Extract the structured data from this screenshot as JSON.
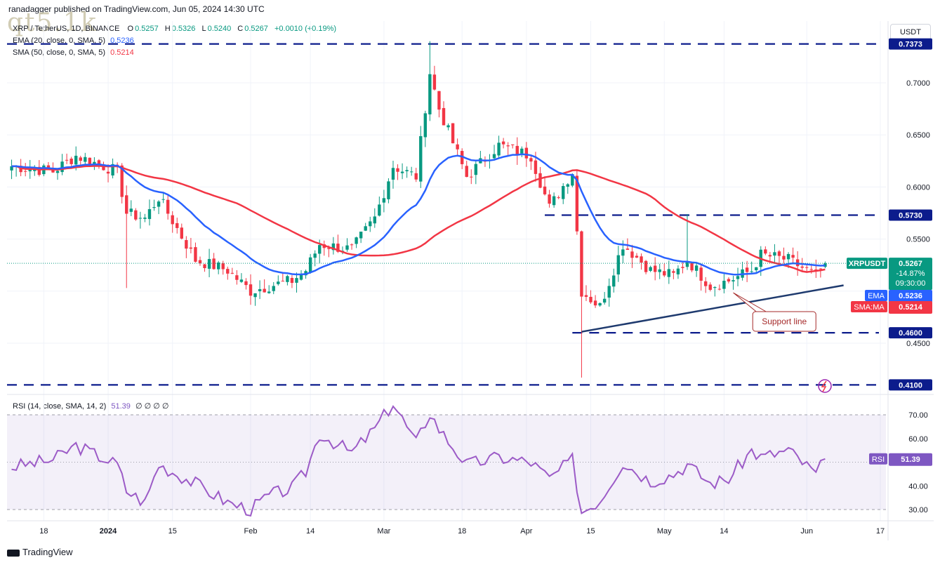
{
  "header": {
    "publisher": "ranadagger published on TradingView.com, Jun 05, 2024 14:30 UTC",
    "watermark": "qt5.1k",
    "symbol": "XRP / TetherUS, 1D, BINANCE",
    "o_label": "O",
    "o": "0.5257",
    "h_label": "H",
    "h": "0.5326",
    "l_label": "L",
    "l": "0.5240",
    "c_label": "C",
    "c": "0.5267",
    "change": "+0.0010 (+0.19%)",
    "ema_label": "EMA (20, close, 0, SMA, 5)",
    "ema_value": "0.5236",
    "sma_label": "SMA (50, close, 0, SMA, 5)",
    "sma_value": "0.5214",
    "rsi_label": "RSI (14, close, SMA, 14, 2)",
    "rsi_value": "51.39",
    "rsi_extra": "∅ ∅ ∅ ∅",
    "currency_button": "USDT"
  },
  "footer": {
    "brand": "TradingView"
  },
  "colors": {
    "up": "#089981",
    "down": "#f23645",
    "ema": "#2962ff",
    "sma": "#f23645",
    "rsi": "#9c5bc7",
    "level": "#0c1c8c",
    "support": "#1e3a6e"
  },
  "chart_data": [
    {
      "type": "candlestick",
      "title": "XRP / TetherUS, 1D, BINANCE",
      "x_tick_labels": [
        "18",
        "2024",
        "15",
        "Feb",
        "14",
        "Mar",
        "18",
        "Apr",
        "15",
        "May",
        "14",
        "Jun",
        "17"
      ],
      "y_tick_labels": [
        "0.4500",
        "0.5000",
        "0.5500",
        "0.6000",
        "0.6500",
        "0.7000"
      ],
      "ylim": [
        0.41,
        0.74
      ],
      "price_keypoints": [
        [
          "2023-12-11",
          0.62
        ],
        [
          "2023-12-20",
          0.615
        ],
        [
          "2023-12-25",
          0.63
        ],
        [
          "2024-01-03",
          0.615
        ],
        [
          "2024-01-05",
          0.575
        ],
        [
          "2024-01-09",
          0.57
        ],
        [
          "2024-01-12",
          0.59
        ],
        [
          "2024-01-20",
          0.53
        ],
        [
          "2024-01-27",
          0.52
        ],
        [
          "2024-02-01",
          0.5
        ],
        [
          "2024-02-05",
          0.505
        ],
        [
          "2024-02-10",
          0.51
        ],
        [
          "2024-02-13",
          0.52
        ],
        [
          "2024-02-16",
          0.545
        ],
        [
          "2024-02-23",
          0.54
        ],
        [
          "2024-02-28",
          0.57
        ],
        [
          "2024-03-03",
          0.62
        ],
        [
          "2024-03-08",
          0.61
        ],
        [
          "2024-03-11",
          0.71
        ],
        [
          "2024-03-13",
          0.675
        ],
        [
          "2024-03-19",
          0.61
        ],
        [
          "2024-03-26",
          0.64
        ],
        [
          "2024-04-02",
          0.63
        ],
        [
          "2024-04-06",
          0.58
        ],
        [
          "2024-04-11",
          0.615
        ],
        [
          "2024-04-13",
          0.5
        ],
        [
          "2024-04-17",
          0.485
        ],
        [
          "2024-04-22",
          0.545
        ],
        [
          "2024-04-28",
          0.52
        ],
        [
          "2024-05-03",
          0.515
        ],
        [
          "2024-05-06",
          0.53
        ],
        [
          "2024-05-11",
          0.505
        ],
        [
          "2024-05-15",
          0.51
        ],
        [
          "2024-05-20",
          0.52
        ],
        [
          "2024-05-22",
          0.535
        ],
        [
          "2024-05-28",
          0.53
        ],
        [
          "2024-06-03",
          0.515
        ],
        [
          "2024-06-05",
          0.5267
        ]
      ],
      "last_price": "0.5267",
      "last_price_symbol": "XRPUSDT",
      "last_change": "-14.87%",
      "countdown": "09:30:00",
      "ema20_last": "0.5236",
      "sma50_last": "0.5214",
      "ema_tag": "EMA",
      "sma_tag": "SMA:MA",
      "horizontal_levels": [
        {
          "value": 0.7373,
          "label": "0.7373"
        },
        {
          "value": 0.573,
          "label": "0.5730"
        },
        {
          "value": 0.46,
          "label": "0.4600"
        },
        {
          "value": 0.41,
          "label": "0.4100"
        }
      ],
      "support_line": {
        "from": [
          "2024-04-13",
          0.461
        ],
        "to": [
          "2024-06-09",
          0.5056
        ],
        "label": "Support line"
      }
    },
    {
      "type": "line",
      "title": "RSI (14, close, SMA, 14, 2)",
      "y_tick_labels": [
        "30.00",
        "40.00",
        "50.00",
        "60.00",
        "70.00"
      ],
      "ylim": [
        25,
        75
      ],
      "band": [
        30,
        70
      ],
      "midline": 50,
      "rsi_keypoints": [
        [
          "2023-12-11",
          48
        ],
        [
          "2023-12-20",
          51
        ],
        [
          "2023-12-25",
          57
        ],
        [
          "2024-01-03",
          49
        ],
        [
          "2024-01-05",
          38
        ],
        [
          "2024-01-09",
          33
        ],
        [
          "2024-01-12",
          49
        ],
        [
          "2024-01-20",
          41
        ],
        [
          "2024-01-27",
          33
        ],
        [
          "2024-02-01",
          30
        ],
        [
          "2024-02-05",
          36
        ],
        [
          "2024-02-10",
          39
        ],
        [
          "2024-02-13",
          46
        ],
        [
          "2024-02-16",
          62
        ],
        [
          "2024-02-23",
          54
        ],
        [
          "2024-02-28",
          64
        ],
        [
          "2024-03-03",
          75
        ],
        [
          "2024-03-08",
          58
        ],
        [
          "2024-03-11",
          71
        ],
        [
          "2024-03-13",
          64
        ],
        [
          "2024-03-19",
          49
        ],
        [
          "2024-03-26",
          52
        ],
        [
          "2024-04-02",
          50
        ],
        [
          "2024-04-06",
          43
        ],
        [
          "2024-04-11",
          51
        ],
        [
          "2024-04-13",
          29
        ],
        [
          "2024-04-17",
          34
        ],
        [
          "2024-04-22",
          50
        ],
        [
          "2024-04-28",
          42
        ],
        [
          "2024-05-03",
          45
        ],
        [
          "2024-05-06",
          49
        ],
        [
          "2024-05-11",
          41
        ],
        [
          "2024-05-15",
          43
        ],
        [
          "2024-05-20",
          55
        ],
        [
          "2024-05-22",
          52
        ],
        [
          "2024-05-28",
          55
        ],
        [
          "2024-06-03",
          45
        ],
        [
          "2024-06-05",
          51.39
        ]
      ],
      "last_value": "51.39",
      "tag": "RSI"
    }
  ]
}
